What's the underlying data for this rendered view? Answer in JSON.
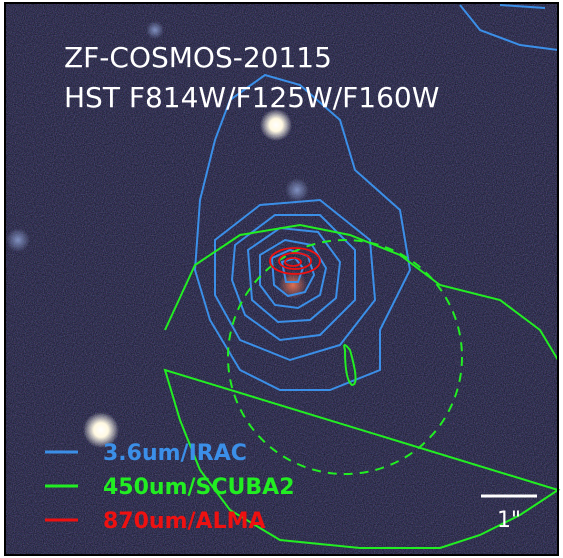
{
  "title": [
    "ZF-COSMOS-20115",
    "HST F814W/F125W/F160W"
  ],
  "legend": [
    {
      "label": "3.6um/IRAC",
      "color": "#3b8fe8"
    },
    {
      "label": "450um/SCUBA2",
      "color": "#22ee22"
    },
    {
      "label": "870um/ALMA",
      "color": "#ee1111"
    }
  ],
  "scale_bar": "1\""
}
